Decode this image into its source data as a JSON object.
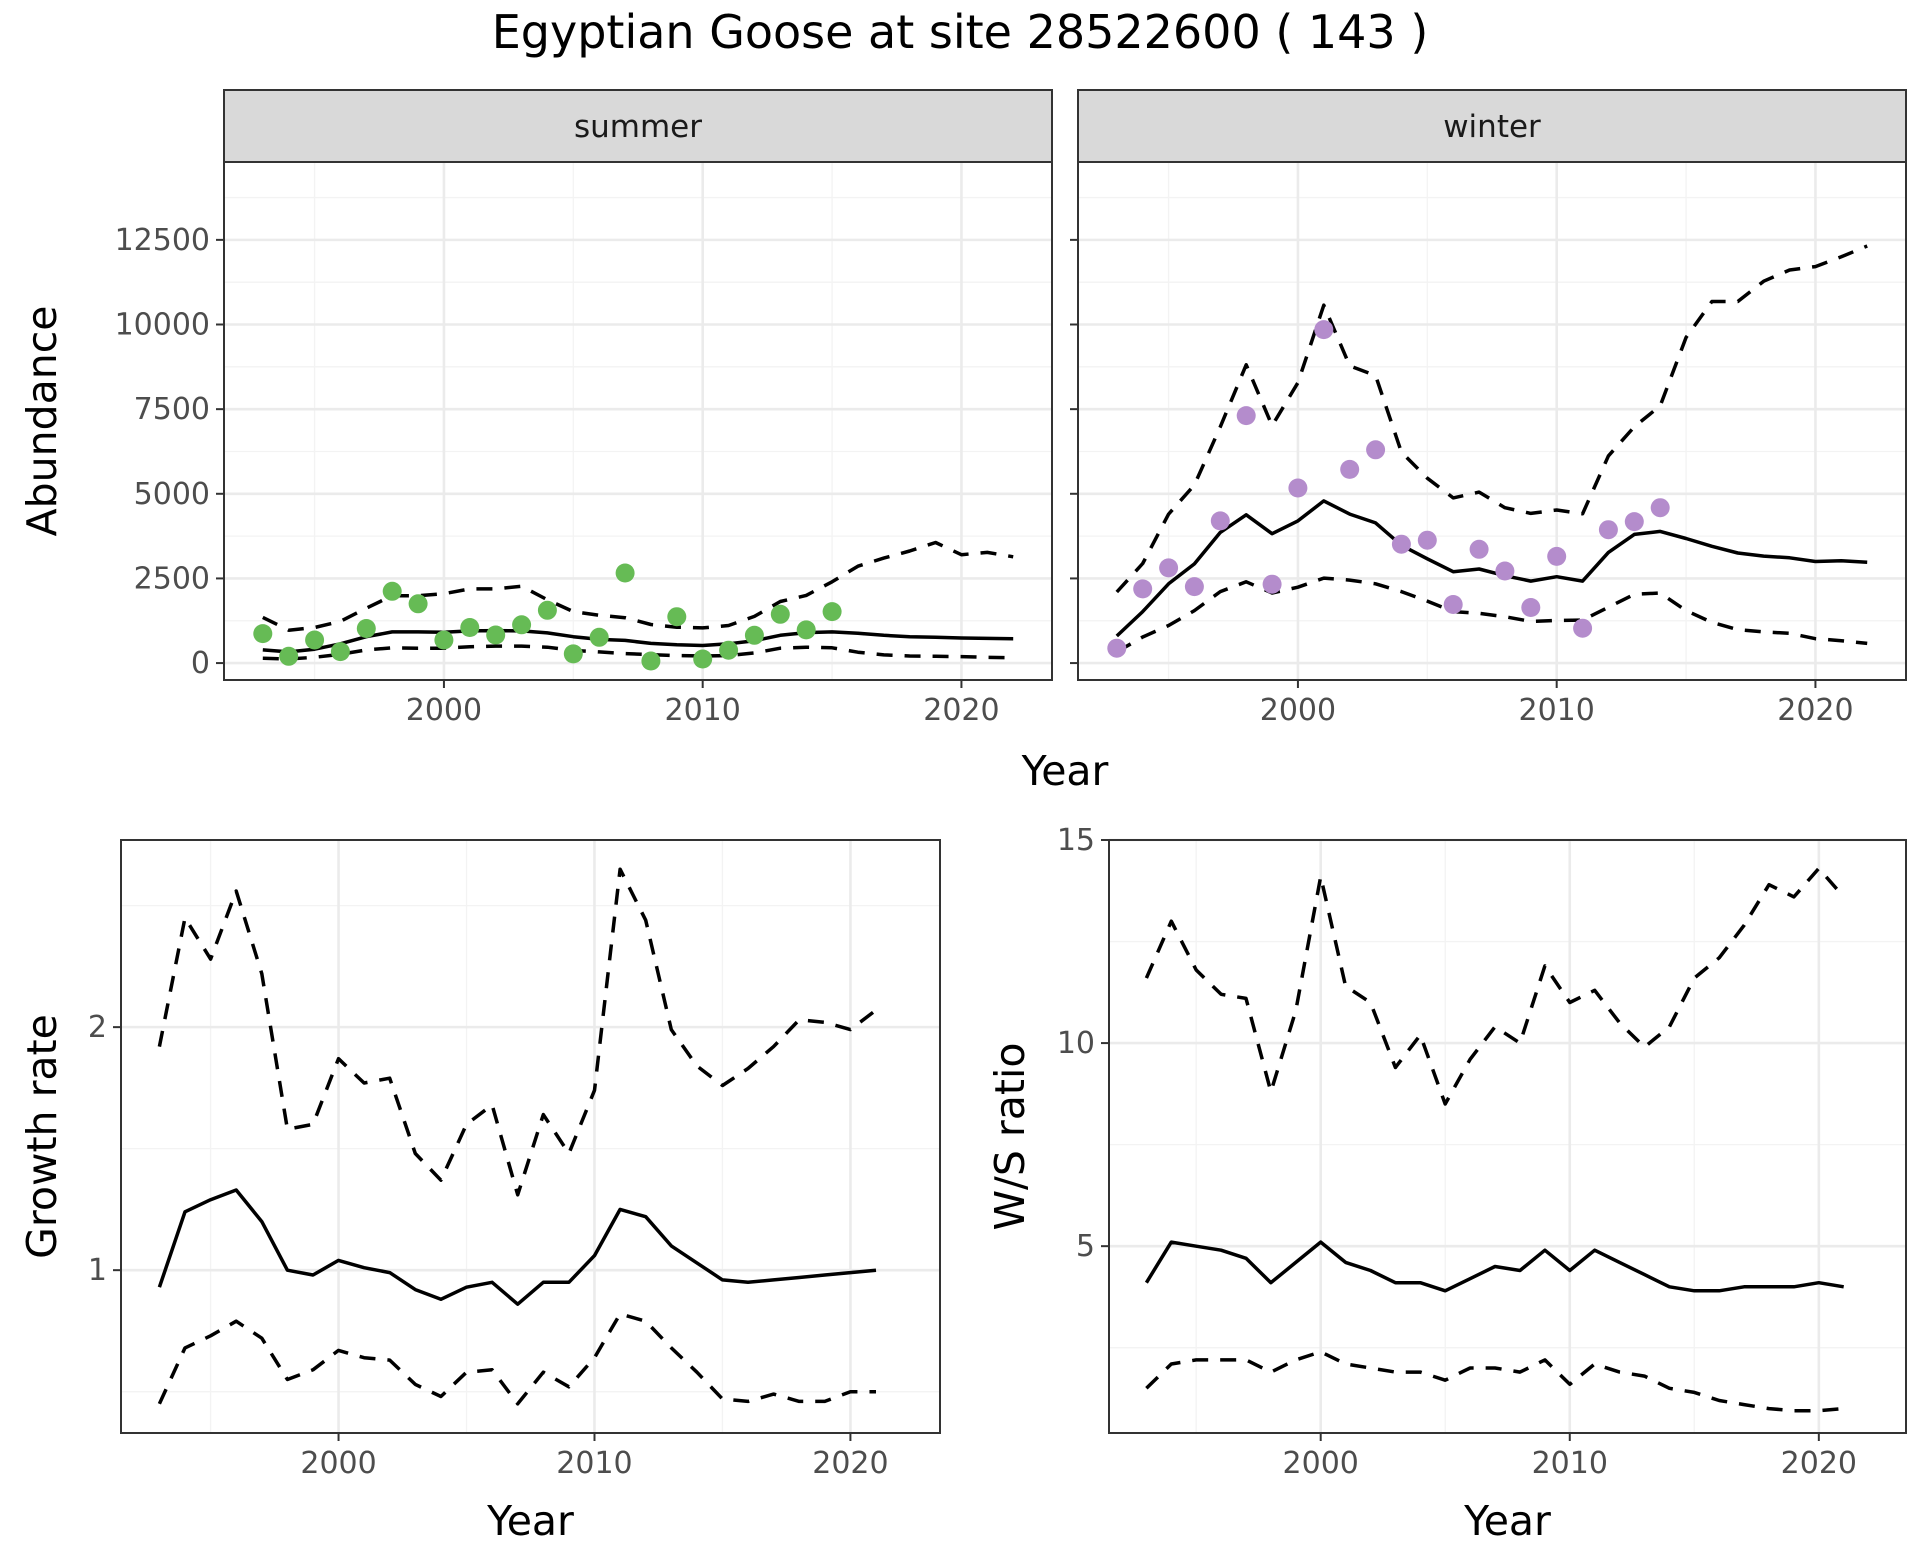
{
  "title": "Egyptian Goose at site 28522600 ( 143 )",
  "colors": {
    "summer_points": "#66bb55",
    "winter_points": "#b48ccc",
    "lines": "#000000"
  },
  "chart_data": [
    {
      "type": "line",
      "panel": "summer",
      "ylabel": "Abundance",
      "xlabel": "Year",
      "xlim": [
        1991.5,
        2023.5
      ],
      "ylim": [
        -500,
        14800
      ],
      "xticks": [
        "2000",
        "2010",
        "2020"
      ],
      "yticks": [
        "0",
        "2500",
        "5000",
        "7500",
        "10000",
        "12500"
      ],
      "x": [
        1993,
        1994,
        1995,
        1996,
        1997,
        1998,
        1999,
        2000,
        2001,
        2002,
        2003,
        2004,
        2005,
        2006,
        2007,
        2008,
        2009,
        2010,
        2011,
        2012,
        2013,
        2014,
        2015,
        2016,
        2017,
        2018,
        2019,
        2020,
        2021,
        2022
      ],
      "mean": [
        390,
        330,
        410,
        570,
        780,
        920,
        920,
        910,
        950,
        960,
        950,
        890,
        780,
        700,
        670,
        580,
        540,
        520,
        570,
        660,
        820,
        900,
        920,
        880,
        820,
        780,
        760,
        740,
        730,
        720
      ],
      "upper": [
        1350,
        970,
        1050,
        1230,
        1620,
        1990,
        1990,
        2050,
        2190,
        2190,
        2270,
        1870,
        1520,
        1410,
        1340,
        1140,
        1060,
        1040,
        1110,
        1380,
        1820,
        2000,
        2400,
        2860,
        3100,
        3310,
        3560,
        3200,
        3270,
        3140
      ],
      "lower": [
        140,
        120,
        170,
        260,
        390,
        450,
        440,
        440,
        480,
        500,
        500,
        470,
        370,
        330,
        280,
        250,
        220,
        210,
        220,
        300,
        440,
        470,
        450,
        320,
        240,
        210,
        200,
        190,
        170,
        160
      ],
      "points_x": [
        1993,
        1994,
        1995,
        1996,
        1997,
        1998,
        1999,
        2000,
        2001,
        2002,
        2003,
        2004,
        2005,
        2006,
        2007,
        2008,
        2009,
        2010,
        2011,
        2012,
        2013,
        2014,
        2015
      ],
      "points_y": [
        870,
        200,
        680,
        340,
        1020,
        2120,
        1750,
        680,
        1050,
        830,
        1130,
        1560,
        270,
        760,
        2660,
        60,
        1370,
        120,
        380,
        820,
        1440,
        980,
        1520
      ]
    },
    {
      "type": "line",
      "panel": "winter",
      "ylabel": "Abundance",
      "xlabel": "Year",
      "xlim": [
        1991.5,
        2023.5
      ],
      "ylim": [
        -500,
        14800
      ],
      "xticks": [
        "2000",
        "2010",
        "2020"
      ],
      "x": [
        1993,
        1994,
        1995,
        1996,
        1997,
        1998,
        1999,
        2000,
        2001,
        2002,
        2003,
        2004,
        2005,
        2006,
        2007,
        2008,
        2009,
        2010,
        2011,
        2012,
        2013,
        2014,
        2015,
        2016,
        2017,
        2018,
        2019,
        2020,
        2021,
        2022
      ],
      "mean": [
        800,
        1520,
        2340,
        2930,
        3860,
        4380,
        3820,
        4200,
        4790,
        4400,
        4140,
        3480,
        3080,
        2700,
        2780,
        2580,
        2420,
        2550,
        2420,
        3270,
        3800,
        3890,
        3680,
        3450,
        3250,
        3160,
        3110,
        3000,
        3020,
        2980
      ],
      "upper": [
        2100,
        2940,
        4400,
        5260,
        6980,
        8810,
        7010,
        8280,
        10570,
        8780,
        8490,
        6230,
        5460,
        4880,
        5050,
        4590,
        4420,
        4520,
        4410,
        6120,
        6980,
        7600,
        9620,
        10680,
        10680,
        11280,
        11610,
        11710,
        12000,
        12320
      ],
      "lower": [
        330,
        770,
        1110,
        1550,
        2110,
        2400,
        2070,
        2240,
        2510,
        2450,
        2340,
        2110,
        1830,
        1520,
        1470,
        1370,
        1230,
        1260,
        1270,
        1650,
        2030,
        2070,
        1550,
        1200,
        990,
        920,
        880,
        720,
        660,
        580
      ],
      "points_x": [
        1993,
        1994,
        1995,
        1996,
        1997,
        1998,
        1999,
        2000,
        2001,
        2002,
        2003,
        2004,
        2005,
        2006,
        2007,
        2008,
        2009,
        2010,
        2011,
        2012,
        2013,
        2014
      ],
      "points_y": [
        440,
        2190,
        2810,
        2260,
        4200,
        7310,
        2330,
        5170,
        9850,
        5720,
        6300,
        3510,
        3630,
        1730,
        3360,
        2720,
        1640,
        3150,
        1030,
        3940,
        4180,
        4590
      ]
    },
    {
      "type": "line",
      "panel": "growth",
      "xlabel": "Year",
      "ylabel": "Growth rate",
      "xlim": [
        1991.5,
        2023.5
      ],
      "ylim": [
        0.33,
        2.77
      ],
      "xticks": [
        "2000",
        "2010",
        "2020"
      ],
      "yticks": [
        "1",
        "2"
      ],
      "x": [
        1993,
        1994,
        1995,
        1996,
        1997,
        1998,
        1999,
        2000,
        2001,
        2002,
        2003,
        2004,
        2005,
        2006,
        2007,
        2008,
        2009,
        2010,
        2011,
        2012,
        2013,
        2014,
        2015,
        2016,
        2017,
        2018,
        2019,
        2020,
        2021
      ],
      "mean": [
        0.93,
        1.24,
        1.29,
        1.33,
        1.2,
        1.0,
        0.98,
        1.04,
        1.01,
        0.99,
        0.92,
        0.88,
        0.93,
        0.95,
        0.86,
        0.95,
        0.95,
        1.06,
        1.25,
        1.22,
        1.1,
        1.03,
        0.96,
        0.95,
        0.96,
        0.97,
        0.98,
        0.99,
        1.0
      ],
      "upper": [
        1.92,
        2.45,
        2.28,
        2.56,
        2.22,
        1.58,
        1.6,
        1.87,
        1.77,
        1.79,
        1.48,
        1.37,
        1.6,
        1.68,
        1.31,
        1.64,
        1.48,
        1.74,
        2.65,
        2.44,
        1.99,
        1.84,
        1.76,
        1.83,
        1.92,
        2.03,
        2.02,
        1.99,
        2.07
      ],
      "lower": [
        0.45,
        0.68,
        0.73,
        0.79,
        0.72,
        0.55,
        0.59,
        0.67,
        0.64,
        0.63,
        0.53,
        0.48,
        0.58,
        0.59,
        0.45,
        0.58,
        0.52,
        0.64,
        0.82,
        0.79,
        0.68,
        0.58,
        0.47,
        0.46,
        0.49,
        0.46,
        0.46,
        0.5,
        0.5
      ]
    },
    {
      "type": "line",
      "panel": "ws_ratio",
      "xlabel": "Year",
      "ylabel": "W/S ratio",
      "xlim": [
        1991.5,
        2023.5
      ],
      "ylim": [
        0.4,
        15.0
      ],
      "xticks": [
        "2000",
        "2010",
        "2020"
      ],
      "yticks": [
        "5",
        "10",
        "15"
      ],
      "x": [
        1993,
        1994,
        1995,
        1996,
        1997,
        1998,
        1999,
        2000,
        2001,
        2002,
        2003,
        2004,
        2005,
        2006,
        2007,
        2008,
        2009,
        2010,
        2011,
        2012,
        2013,
        2014,
        2015,
        2016,
        2017,
        2018,
        2019,
        2020,
        2021
      ],
      "mean": [
        4.1,
        5.1,
        5.0,
        4.9,
        4.7,
        4.1,
        4.6,
        5.1,
        4.6,
        4.4,
        4.1,
        4.1,
        3.9,
        4.2,
        4.5,
        4.4,
        4.9,
        4.4,
        4.9,
        4.6,
        4.3,
        4.0,
        3.9,
        3.9,
        4.0,
        4.0,
        4.0,
        4.1,
        4.0
      ],
      "upper": [
        11.6,
        13.0,
        11.8,
        11.2,
        11.1,
        8.8,
        10.8,
        14.1,
        11.4,
        11.0,
        9.4,
        10.2,
        8.5,
        9.6,
        10.4,
        10.0,
        11.9,
        11.0,
        11.3,
        10.5,
        9.9,
        10.4,
        11.6,
        12.1,
        12.9,
        13.9,
        13.6,
        14.3,
        13.6
      ],
      "lower": [
        1.5,
        2.1,
        2.2,
        2.2,
        2.2,
        1.9,
        2.2,
        2.4,
        2.1,
        2.0,
        1.9,
        1.9,
        1.7,
        2.0,
        2.0,
        1.9,
        2.2,
        1.6,
        2.1,
        1.9,
        1.8,
        1.5,
        1.4,
        1.2,
        1.1,
        1.0,
        0.95,
        0.95,
        1.0
      ]
    }
  ]
}
